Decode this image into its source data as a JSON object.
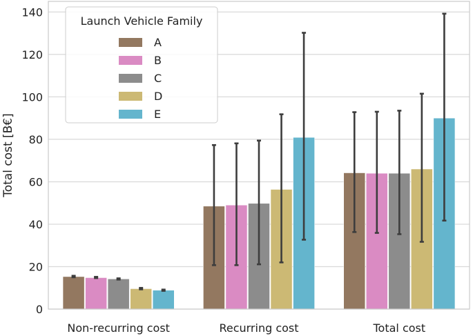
{
  "chart_data": {
    "type": "bar",
    "title": "",
    "xlabel": "",
    "ylabel": "Total cost [B€]",
    "categories": [
      "Non-recurring cost",
      "Recurring cost",
      "Total cost"
    ],
    "ylim": [
      0,
      145
    ],
    "yticks": [
      0,
      20,
      40,
      60,
      80,
      100,
      120,
      140
    ],
    "ytick_labels": [
      "0",
      "20",
      "40",
      "60",
      "80",
      "100",
      "120",
      "140"
    ],
    "grid": true,
    "legend": {
      "title": "Launch Vehicle Family",
      "placement": "top-left"
    },
    "series": [
      {
        "name": "A",
        "color": "#937860",
        "values": [
          15.3,
          48.5,
          64.2
        ],
        "err_low": [
          15.0,
          20.7,
          36.3
        ],
        "err_high": [
          15.7,
          77.3,
          92.8
        ]
      },
      {
        "name": "B",
        "color": "#DA8BC3",
        "values": [
          14.8,
          49.0,
          64.0
        ],
        "err_low": [
          14.6,
          20.7,
          35.9
        ],
        "err_high": [
          15.2,
          78.1,
          93.0
        ]
      },
      {
        "name": "C",
        "color": "#8C8C8C",
        "values": [
          14.2,
          49.8,
          64.0
        ],
        "err_low": [
          13.9,
          21.1,
          35.3
        ],
        "err_high": [
          14.5,
          79.4,
          93.5
        ]
      },
      {
        "name": "D",
        "color": "#CCB974",
        "values": [
          9.6,
          56.4,
          66.0
        ],
        "err_low": [
          9.3,
          22.0,
          31.7
        ],
        "err_high": [
          10.0,
          91.8,
          101.5
        ]
      },
      {
        "name": "E",
        "color": "#64B5CD",
        "values": [
          8.9,
          80.9,
          90.0
        ],
        "err_low": [
          8.6,
          32.7,
          41.7
        ],
        "err_high": [
          9.2,
          130.2,
          139.2
        ]
      }
    ]
  }
}
